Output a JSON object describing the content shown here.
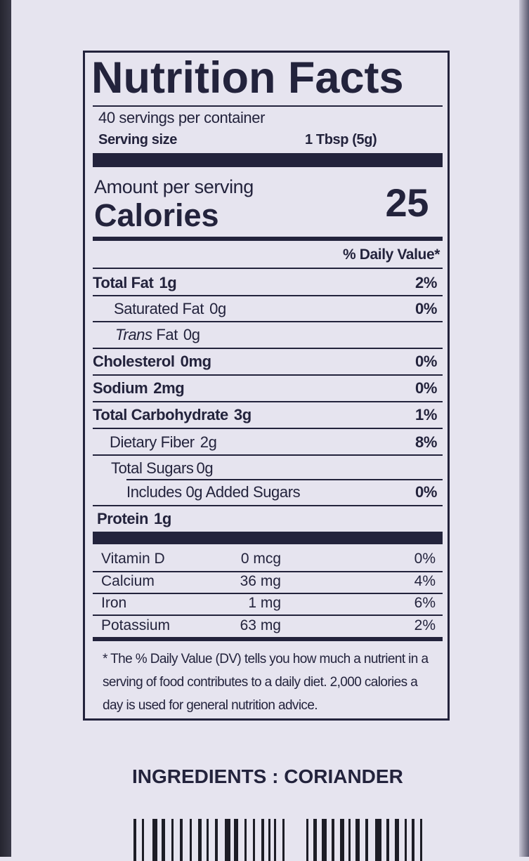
{
  "header": {
    "title": "Nutrition Facts",
    "servings": "40 servings per container",
    "serving_size_label": "Serving size",
    "serving_size": "1 Tbsp (5g)"
  },
  "calories": {
    "amount_label": "Amount per serving",
    "label": "Calories",
    "value": "25"
  },
  "daily_value_header": "% Daily Value*",
  "nutrients": [
    {
      "name": "Total Fat",
      "amount": "1g",
      "dv": "2%"
    },
    {
      "name": "Saturated Fat",
      "amount": "0g",
      "dv": "0%"
    },
    {
      "name_italic": "Trans",
      "name": "Fat",
      "amount": "0g"
    },
    {
      "name": "Cholesterol",
      "amount": "0mg",
      "dv": "0%"
    },
    {
      "name": "Sodium",
      "amount": "2mg",
      "dv": "0%"
    },
    {
      "name": "Total Carbohydrate",
      "amount": "3g",
      "dv": "1%"
    },
    {
      "name": "Dietary Fiber",
      "amount": "2g",
      "dv": "8%"
    },
    {
      "name": "Total Sugars",
      "amount": "0g"
    },
    {
      "name": "Includes 0g Added Sugars",
      "dv": "0%"
    },
    {
      "name": "Protein",
      "amount": "1g"
    }
  ],
  "vitamins": [
    {
      "name": "Vitamin D",
      "amount": "0 mcg",
      "dv": "0%"
    },
    {
      "name": "Calcium",
      "amount": "36 mg",
      "dv": "4%"
    },
    {
      "name": "Iron",
      "amount": "1 mg",
      "dv": "6%"
    },
    {
      "name": "Potassium",
      "amount": "63 mg",
      "dv": "2%"
    }
  ],
  "footnote": "* The % Daily Value (DV) tells you how much a nutrient in a serving of food contributes to a daily diet. 2,000 calories a day is used for general nutrition advice.",
  "ingredients": "INGREDIENTS : CORIANDER"
}
